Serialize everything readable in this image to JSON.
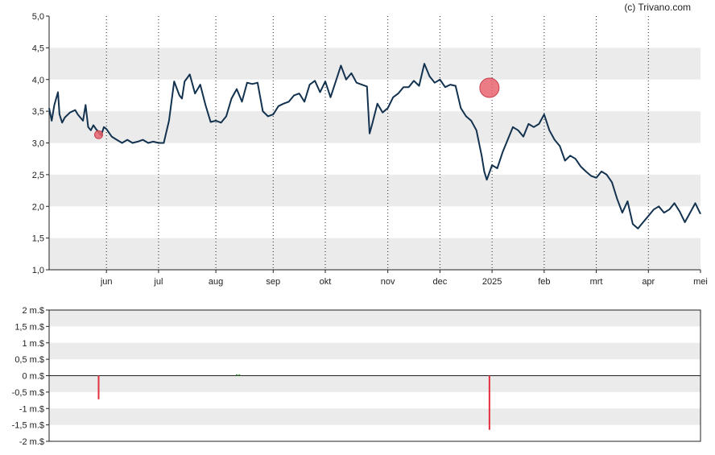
{
  "copyright": "(c) Trivano.com",
  "colors": {
    "line": "#13324f",
    "band": "#ebebeb",
    "insider_sell": "#e3303f",
    "insider_buy": "#2e8b2e",
    "event_dot": "#e8646e"
  },
  "chart_data": [
    {
      "type": "line",
      "title": "",
      "ylim": [
        1.0,
        5.0
      ],
      "y_ticks": [
        "1,0",
        "1,5",
        "2,0",
        "2,5",
        "3,0",
        "3,5",
        "4,0",
        "4,5",
        "5,0"
      ],
      "x_ticks": [
        "jun",
        "jul",
        "aug",
        "sep",
        "okt",
        "nov",
        "dec",
        "2025",
        "feb",
        "mrt",
        "apr",
        "mei"
      ],
      "x_tick_pos": [
        5.1,
        6.1,
        7.2,
        8.3,
        9.3,
        10.5,
        11.5,
        12.5,
        13.5,
        14.5,
        15.5,
        16.5
      ],
      "xlim": [
        4.0,
        16.5
      ],
      "grid": "dotted vertical at month ticks, alternating horizontal bands",
      "series": [
        {
          "x": [
            4.0,
            4.05,
            4.1,
            4.17,
            4.2,
            4.25,
            4.3,
            4.4,
            4.5,
            4.55,
            4.65,
            4.7,
            4.75,
            4.8,
            4.85,
            4.9,
            5.0,
            5.05,
            5.1,
            5.2,
            5.3,
            5.4,
            5.5,
            5.6,
            5.7,
            5.8,
            5.9,
            6.0,
            6.1,
            6.2,
            6.3,
            6.4,
            6.5,
            6.55,
            6.6,
            6.7,
            6.8,
            6.9,
            7.0,
            7.1,
            7.2,
            7.3,
            7.4,
            7.5,
            7.6,
            7.7,
            7.8,
            7.9,
            8.0,
            8.1,
            8.2,
            8.3,
            8.4,
            8.5,
            8.6,
            8.7,
            8.8,
            8.9,
            9.0,
            9.1,
            9.2,
            9.3,
            9.4,
            9.5,
            9.6,
            9.7,
            9.8,
            9.9,
            10.0,
            10.1,
            10.15,
            10.2,
            10.3,
            10.4,
            10.5,
            10.6,
            10.7,
            10.8,
            10.9,
            11.0,
            11.1,
            11.2,
            11.3,
            11.4,
            11.5,
            11.6,
            11.7,
            11.8,
            11.9,
            12.0,
            12.1,
            12.2,
            12.3,
            12.35,
            12.4,
            12.5,
            12.6,
            12.7,
            12.8,
            12.9,
            13.0,
            13.1,
            13.2,
            13.3,
            13.4,
            13.5,
            13.6,
            13.7,
            13.8,
            13.9,
            14.0,
            14.1,
            14.2,
            14.3,
            14.4,
            14.5,
            14.6,
            14.7,
            14.8,
            14.9,
            15.0,
            15.1,
            15.2,
            15.3,
            15.4,
            15.5,
            15.6,
            15.7,
            15.8,
            15.9,
            16.0,
            16.1,
            16.2,
            16.3,
            16.4,
            16.5
          ],
          "values": [
            3.55,
            3.35,
            3.6,
            3.8,
            3.45,
            3.32,
            3.4,
            3.48,
            3.52,
            3.45,
            3.35,
            3.6,
            3.25,
            3.2,
            3.28,
            3.22,
            3.12,
            3.25,
            3.22,
            3.1,
            3.05,
            3.0,
            3.05,
            3.0,
            3.02,
            3.05,
            3.0,
            3.02,
            3.0,
            3.0,
            3.35,
            3.97,
            3.75,
            3.7,
            3.97,
            4.08,
            3.78,
            3.92,
            3.6,
            3.33,
            3.35,
            3.32,
            3.42,
            3.7,
            3.85,
            3.65,
            3.95,
            3.93,
            3.95,
            3.5,
            3.42,
            3.45,
            3.58,
            3.62,
            3.65,
            3.75,
            3.78,
            3.65,
            3.92,
            3.98,
            3.8,
            3.97,
            3.72,
            3.97,
            4.22,
            4.0,
            4.1,
            3.95,
            3.92,
            3.89,
            3.15,
            3.3,
            3.62,
            3.48,
            3.55,
            3.72,
            3.78,
            3.88,
            3.88,
            3.98,
            3.9,
            4.25,
            4.05,
            3.95,
            4.0,
            3.88,
            3.92,
            3.9,
            3.55,
            3.42,
            3.35,
            3.2,
            2.8,
            2.55,
            2.42,
            2.65,
            2.6,
            2.85,
            3.05,
            3.25,
            3.2,
            3.1,
            3.3,
            3.25,
            3.3,
            3.45,
            3.2,
            3.05,
            2.95,
            2.72,
            2.8,
            2.75,
            2.63,
            2.55,
            2.48,
            2.45,
            2.55,
            2.5,
            2.38,
            2.12,
            1.9,
            2.08,
            1.72,
            1.65,
            1.75,
            1.85,
            1.95,
            2.0,
            1.9,
            1.95,
            2.05,
            1.92,
            1.75,
            1.9,
            2.05,
            1.88
          ]
        }
      ],
      "markers": [
        {
          "x": 4.95,
          "y": 3.13,
          "size": "small"
        },
        {
          "x": 12.45,
          "y": 3.87,
          "size": "large"
        }
      ]
    },
    {
      "type": "bar",
      "title": "",
      "ylim": [
        -2.0,
        2.0
      ],
      "y_ticks": [
        "-2 m.$",
        "-1,5 m.$",
        "-1 m.$",
        "-0,5 m.$",
        "0 m.$",
        "0,5 m.$",
        "1 m.$",
        "1,5 m.$",
        "2 m.$"
      ],
      "series": [
        {
          "name": "",
          "x": [
            4.95,
            7.6,
            7.65,
            12.45
          ],
          "values": [
            -0.72,
            0.04,
            0.04,
            -1.65
          ]
        }
      ]
    }
  ]
}
